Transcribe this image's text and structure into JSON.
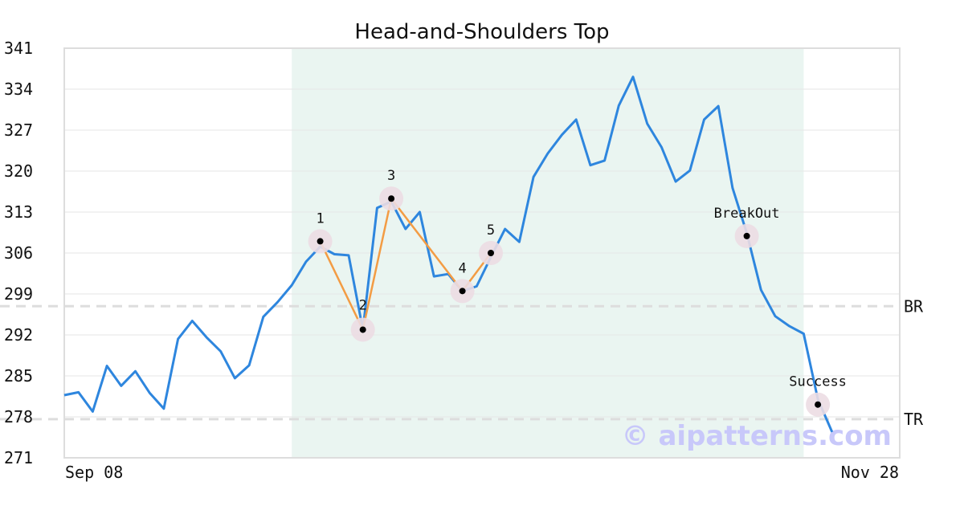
{
  "chart_data": {
    "type": "line",
    "title": "Head-and-Shoulders Top",
    "xlabel": "",
    "ylabel": "",
    "ylim": [
      271,
      341
    ],
    "y_ticks": [
      271,
      278,
      285,
      292,
      299,
      306,
      313,
      320,
      327,
      334,
      341
    ],
    "x_tick_labels": [
      "Sep 08",
      "Nov 28"
    ],
    "grid": "horizontal",
    "pattern_window": {
      "start_index": 16,
      "end_index": 52
    },
    "colors": {
      "price_line": "#2e86de",
      "pattern_line": "#f39c44",
      "pattern_window": "#eaf5f1",
      "marker_halo": "#ecdde3",
      "marker_dot": "#000000",
      "reference_lines": "#dddddd",
      "watermark": "#c8c8fa"
    },
    "series": [
      {
        "values": [
          281.7,
          282.2,
          278.9,
          286.7,
          283.3,
          285.8,
          282.1,
          279.4,
          291.3,
          294.4,
          291.6,
          289.2,
          284.6,
          286.8,
          295.1,
          297.6,
          300.5,
          304.5,
          307.1,
          305.8,
          305.6,
          292.9,
          313.7,
          314.8,
          310.1,
          313.0,
          302.0,
          302.4,
          299.5,
          300.3,
          305.3,
          310.1,
          307.9,
          319.0,
          323.0,
          326.2,
          328.8,
          321.0,
          321.8,
          331.2,
          336.1,
          328.1,
          324.1,
          318.2,
          320.1,
          328.8,
          331.1,
          317.1,
          309.4,
          299.7,
          295.2,
          293.5,
          292.2,
          281.0,
          275.4
        ]
      }
    ],
    "pattern_points": [
      {
        "label": "1",
        "index": 18,
        "value": 308.0
      },
      {
        "label": "2",
        "index": 21,
        "value": 292.9
      },
      {
        "label": "3",
        "index": 23,
        "value": 315.3
      },
      {
        "label": "4",
        "index": 28,
        "value": 299.5
      },
      {
        "label": "5",
        "index": 30,
        "value": 306.0
      }
    ],
    "events": [
      {
        "label": "BreakOut",
        "index": 48,
        "value": 308.9
      },
      {
        "label": "Success",
        "index": 53,
        "value": 280.1
      }
    ],
    "reference_lines": [
      {
        "label": "BR",
        "value": 296.9
      },
      {
        "label": "TR",
        "value": 277.6
      }
    ],
    "watermark": "© aipatterns.com"
  }
}
